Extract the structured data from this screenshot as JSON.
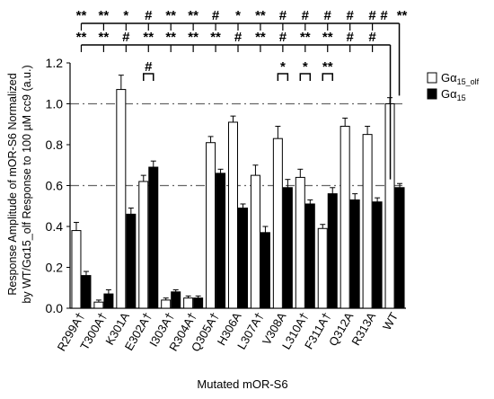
{
  "chart_data": {
    "type": "bar",
    "xlabel": "Mutated mOR-S6",
    "ylabel_line1": "Response Amplitude of mOR-S6 Normalized",
    "ylabel_line2": "by WT/Gα15_olf Response to 100 µM cc9 (a.u.)",
    "ylim": [
      0,
      1.2
    ],
    "yticks": [
      "0.0",
      "0.2",
      "0.4",
      "0.6",
      "0.8",
      "1.0",
      "1.2"
    ],
    "reference_lines": [
      1.0,
      0.6
    ],
    "categories": [
      "R299A†",
      "T300A†",
      "K301A",
      "E302A†",
      "I303A†",
      "R304A†",
      "Q305A†",
      "H306A",
      "L307A†",
      "V308A",
      "L310A†",
      "F311A†",
      "Q312A",
      "R313A",
      "WT"
    ],
    "series": [
      {
        "name": "Gα15_olf",
        "fill": "#ffffff",
        "values": [
          0.38,
          0.03,
          1.07,
          0.62,
          0.04,
          0.05,
          0.81,
          0.91,
          0.65,
          0.83,
          0.64,
          0.39,
          0.89,
          0.85,
          1.0
        ],
        "errors": [
          0.04,
          0.01,
          0.07,
          0.03,
          0.01,
          0.01,
          0.03,
          0.03,
          0.05,
          0.06,
          0.04,
          0.02,
          0.04,
          0.04,
          0.03
        ]
      },
      {
        "name": "Gα15",
        "fill": "#000000",
        "values": [
          0.16,
          0.07,
          0.46,
          0.69,
          0.08,
          0.05,
          0.66,
          0.49,
          0.37,
          0.59,
          0.51,
          0.56,
          0.53,
          0.52,
          0.59
        ],
        "errors": [
          0.02,
          0.02,
          0.03,
          0.03,
          0.01,
          0.01,
          0.02,
          0.02,
          0.03,
          0.04,
          0.02,
          0.03,
          0.03,
          0.02,
          0.02
        ]
      }
    ],
    "top_row_marks": [
      "**",
      "**",
      "*",
      "#",
      "**",
      "**",
      "#",
      "*",
      "**",
      "#",
      "#",
      "#",
      "#",
      "#"
    ],
    "second_row_marks": [
      "**",
      "**",
      "#",
      "**",
      "**",
      "**",
      "**",
      "#",
      "**",
      "#",
      "**",
      "**",
      "#",
      "#"
    ],
    "pair_marks": [
      {
        "category": "E302A†",
        "mark": "#"
      },
      {
        "category": "V308A",
        "mark": "*"
      },
      {
        "category": "L310A†",
        "mark": "*"
      },
      {
        "category": "F311A†",
        "mark": "**"
      }
    ],
    "wt_marks": [
      "#",
      "**"
    ],
    "legend_position": "right"
  }
}
